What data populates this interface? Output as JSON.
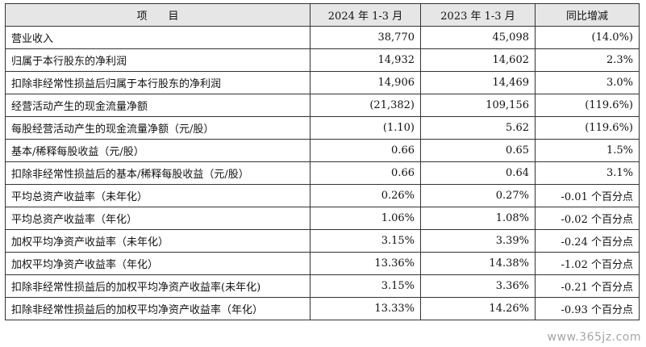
{
  "table": {
    "headers": [
      "项　　目",
      "2024 年 1-3 月",
      "2023 年 1-3 月",
      "同比增减"
    ],
    "rows": [
      {
        "item": "营业收入",
        "y2024": "38,770",
        "y2023": "45,098",
        "change": "(14.0%)"
      },
      {
        "item": "归属于本行股东的净利润",
        "y2024": "14,932",
        "y2023": "14,602",
        "change": "2.3%"
      },
      {
        "item": "扣除非经常性损益后归属于本行股东的净利润",
        "y2024": "14,906",
        "y2023": "14,469",
        "change": "3.0%"
      },
      {
        "item": "经营活动产生的现金流量净额",
        "y2024": "(21,382)",
        "y2023": "109,156",
        "change": "(119.6%)"
      },
      {
        "item": "每股经营活动产生的现金流量净额（元/股）",
        "y2024": "(1.10)",
        "y2023": "5.62",
        "change": "(119.6%)"
      },
      {
        "item": "基本/稀释每股收益（元/股）",
        "y2024": "0.66",
        "y2023": "0.65",
        "change": "1.5%"
      },
      {
        "item": "扣除非经常性损益后的基本/稀释每股收益（元/股）",
        "y2024": "0.66",
        "y2023": "0.64",
        "change": "3.1%"
      },
      {
        "item": "平均总资产收益率（未年化）",
        "y2024": "0.26%",
        "y2023": "0.27%",
        "change": "-0.01 个百分点"
      },
      {
        "item": "平均总资产收益率（年化）",
        "y2024": "1.06%",
        "y2023": "1.08%",
        "change": "-0.02 个百分点"
      },
      {
        "item": "加权平均净资产收益率（未年化）",
        "y2024": "3.15%",
        "y2023": "3.39%",
        "change": "-0.24 个百分点"
      },
      {
        "item": "加权平均净资产收益率（年化）",
        "y2024": "13.36%",
        "y2023": "14.38%",
        "change": "-1.02 个百分点"
      },
      {
        "item": "扣除非经常性损益后的加权平均净资产收益率(未年化)",
        "y2024": "3.15%",
        "y2023": "3.36%",
        "change": "-0.21 个百分点"
      },
      {
        "item": "扣除非经常性损益后的加权平均净资产收益率（年化）",
        "y2024": "13.33%",
        "y2023": "14.26%",
        "change": "-0.93 个百分点"
      }
    ]
  },
  "watermark": "www.365jz.com"
}
